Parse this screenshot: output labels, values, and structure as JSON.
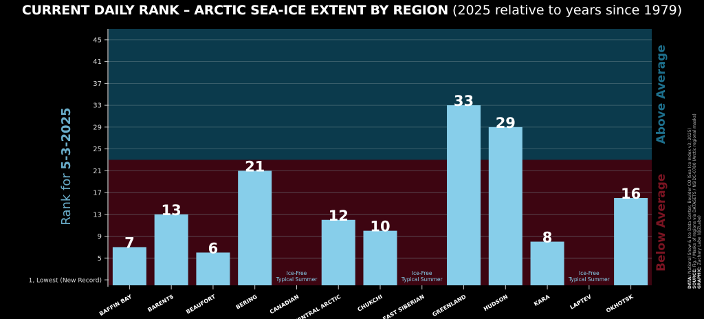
{
  "title": {
    "main": "CURRENT DAILY RANK – ARCTIC SEA-ICE EXTENT BY REGION",
    "sub": "(2025 relative to years since 1979)"
  },
  "y_label_prefix": "Rank for ",
  "y_label_date": "5-3-2025",
  "above_label": "Above Average",
  "below_label": "Below Average",
  "credits": {
    "data_key": "DATA:",
    "data": "National Snow & Ice Data Center, Boulder CO (Sea Ice Index v3; 2025)",
    "source_key": "SOURCE:",
    "source": "Fig. / Masks of regions via DATASETS / NSIDC-0780 (Arctic regional masks)",
    "graphic_key": "GRAPHIC:",
    "graphic": "Zachary Labe (@ZLabe)"
  },
  "colors": {
    "background": "#000000",
    "above": "#0b3a4c",
    "below": "#3d0511",
    "bar": "#87ceea",
    "above_text": "#1d6f8c",
    "below_text": "#7a1422",
    "axis_label": "#6aaecb"
  },
  "chart_data": {
    "type": "bar",
    "categories": [
      "BAFFIN BAY",
      "BARENTS",
      "BEAUFORT",
      "BERING",
      "CANADIAN",
      "CENTRAL ARCTIC",
      "CHUKCHI",
      "EAST SIBERIAN",
      "GREENLAND",
      "HUDSON",
      "KARA",
      "LAPTEV",
      "OKHOTSK"
    ],
    "values": [
      7,
      13,
      6,
      21,
      0,
      12,
      10,
      0,
      33,
      29,
      8,
      0,
      16
    ],
    "notes": [
      "",
      "",
      "",
      "",
      "Ice-Free|Typical Summer",
      "",
      "",
      "Ice-Free|Typical Summer",
      "",
      "",
      "",
      "Ice-Free|Typical Summer",
      ""
    ],
    "y_ticks": [
      5,
      9,
      13,
      17,
      21,
      25,
      29,
      33,
      37,
      41,
      45
    ],
    "y_bottom_tick_label": "1, Lowest (New Record)",
    "ylim": [
      0,
      47
    ],
    "average_threshold": 23,
    "grid": true
  }
}
